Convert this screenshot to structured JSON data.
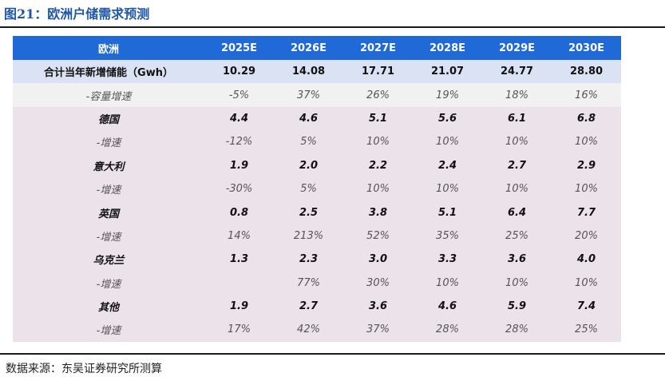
{
  "figure_title": "图21：欧洲户储需求预测",
  "table": {
    "header": [
      "欧洲",
      "2025E",
      "2026E",
      "2027E",
      "2028E",
      "2029E",
      "2030E"
    ],
    "total": {
      "label": "合计当年新增储能（Gwh）",
      "values": [
        "10.29",
        "14.08",
        "17.71",
        "21.07",
        "24.77",
        "28.80"
      ]
    },
    "total_growth": {
      "label": "-容量增速",
      "values": [
        "-5%",
        "37%",
        "26%",
        "19%",
        "18%",
        "16%"
      ]
    },
    "countries": [
      {
        "name": "德国",
        "values": [
          "4.4",
          "4.6",
          "5.1",
          "5.6",
          "6.1",
          "6.8"
        ],
        "growth_label": "-增速",
        "growth": [
          "-12%",
          "5%",
          "10%",
          "10%",
          "10%",
          "10%"
        ]
      },
      {
        "name": "意大利",
        "values": [
          "1.9",
          "2.0",
          "2.2",
          "2.4",
          "2.7",
          "2.9"
        ],
        "growth_label": "-增速",
        "growth": [
          "-30%",
          "5%",
          "10%",
          "10%",
          "10%",
          "10%"
        ]
      },
      {
        "name": "英国",
        "values": [
          "0.8",
          "2.5",
          "3.8",
          "5.1",
          "6.4",
          "7.7"
        ],
        "growth_label": "-增速",
        "growth": [
          "14%",
          "213%",
          "52%",
          "35%",
          "25%",
          "20%"
        ]
      },
      {
        "name": "乌克兰",
        "values": [
          "1.3",
          "2.3",
          "3.0",
          "3.3",
          "3.6",
          "4.0"
        ],
        "growth_label": "-增速",
        "growth": [
          "",
          "77%",
          "30%",
          "10%",
          "10%",
          "10%"
        ]
      },
      {
        "name": "其他",
        "values": [
          "1.9",
          "2.7",
          "3.6",
          "4.6",
          "5.9",
          "7.4"
        ],
        "growth_label": "-增速",
        "growth": [
          "17%",
          "42%",
          "37%",
          "28%",
          "28%",
          "25%"
        ]
      }
    ]
  },
  "source": "数据来源：东吴证券研究所测算",
  "colors": {
    "title": "#1f56a8",
    "header_bg": "#1f6ad6",
    "total_bg": "#dbe2f3",
    "growth_main_bg": "#f1f1f1",
    "country_bg": "#ece2e9"
  }
}
